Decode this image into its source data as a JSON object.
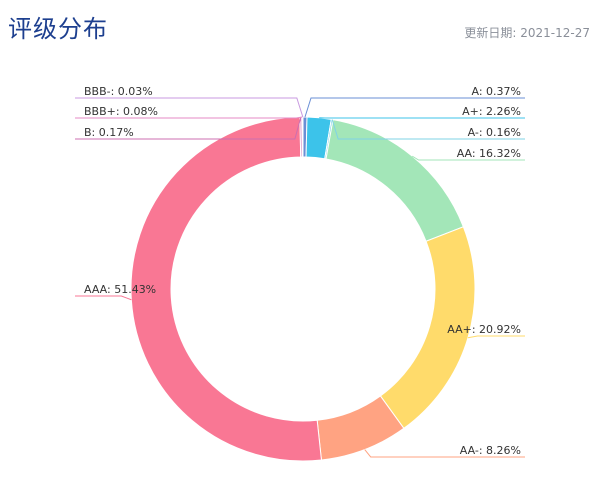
{
  "header": {
    "title": "评级分布",
    "update_date": "更新日期: 2021-12-27"
  },
  "chart_data": {
    "type": "pie",
    "variant": "donut",
    "title": "评级分布",
    "legend": "none",
    "slices": [
      {
        "name": "A",
        "value": 0.37,
        "label": "A: 0.37%",
        "color": "#6a8fd6"
      },
      {
        "name": "A+",
        "value": 2.26,
        "label": "A+: 2.26%",
        "color": "#3cc3ea"
      },
      {
        "name": "A-",
        "value": 0.16,
        "label": "A-: 0.16%",
        "color": "#7fd3e6"
      },
      {
        "name": "AA",
        "value": 16.32,
        "label": "AA: 16.32%",
        "color": "#a3e6b8"
      },
      {
        "name": "AA+",
        "value": 20.92,
        "label": "AA+: 20.92%",
        "color": "#ffdb6b"
      },
      {
        "name": "AA-",
        "value": 8.26,
        "label": "AA-: 8.26%",
        "color": "#ffa382"
      },
      {
        "name": "AAA",
        "value": 51.43,
        "label": "AAA: 51.43%",
        "color": "#f97794"
      },
      {
        "name": "B",
        "value": 0.17,
        "label": "B: 0.17%",
        "color": "#cc6fb0"
      },
      {
        "name": "BBB+",
        "value": 0.08,
        "label": "BBB+: 0.08%",
        "color": "#e58ac4"
      },
      {
        "name": "BBB-",
        "value": 0.03,
        "label": "BBB-: 0.03%",
        "color": "#c89ae0"
      }
    ]
  }
}
